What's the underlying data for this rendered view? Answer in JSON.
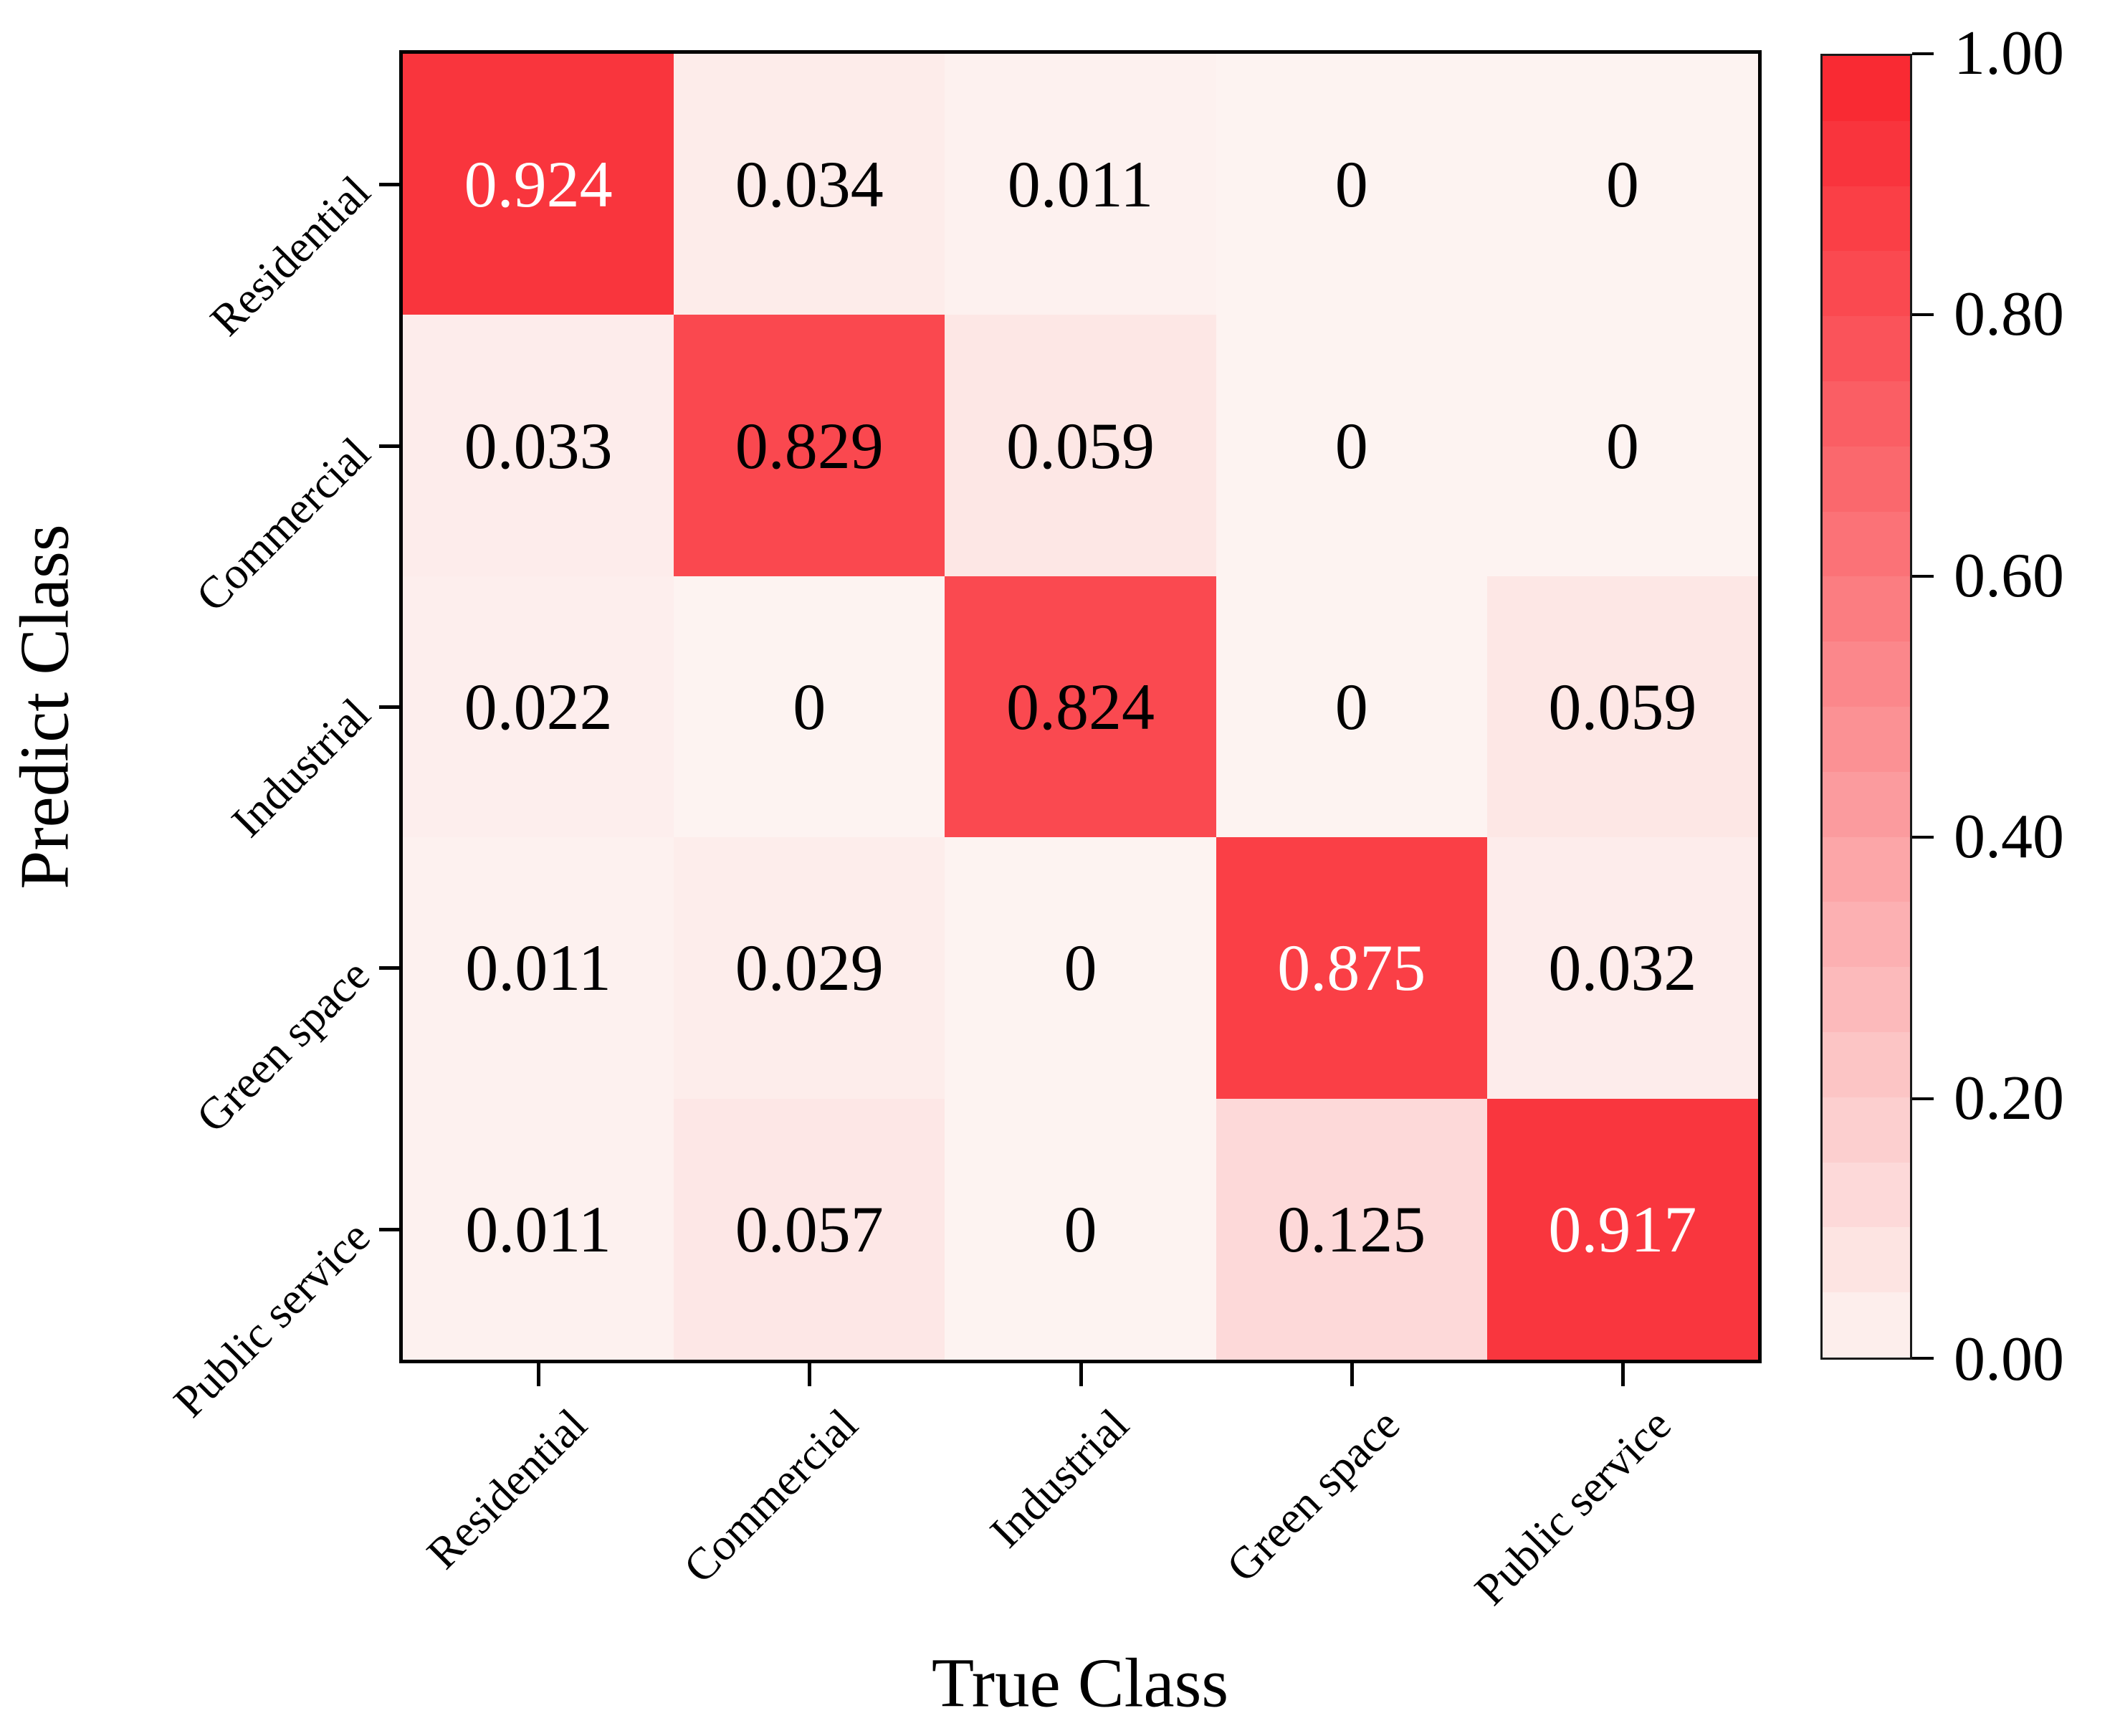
{
  "chart_data": {
    "type": "heatmap",
    "title": "",
    "xlabel": "True Class",
    "ylabel": "Predict Class",
    "x_categories": [
      "Residential",
      "Commercial",
      "Industrial",
      "Green space",
      "Public service"
    ],
    "y_categories": [
      "Residential",
      "Commercial",
      "Industrial",
      "Green space",
      "Public service"
    ],
    "series": [
      {
        "name": "Residential",
        "values": [
          0.924,
          0.034,
          0.011,
          0,
          0
        ]
      },
      {
        "name": "Commercial",
        "values": [
          0.033,
          0.829,
          0.059,
          0,
          0
        ]
      },
      {
        "name": "Industrial",
        "values": [
          0.022,
          0,
          0.824,
          0,
          0.059
        ]
      },
      {
        "name": "Green space",
        "values": [
          0.011,
          0.029,
          0,
          0.875,
          0.032
        ]
      },
      {
        "name": "Public service",
        "values": [
          0.011,
          0.057,
          0,
          0.125,
          0.917
        ]
      }
    ],
    "cell_text": [
      [
        "0.924",
        "0.034",
        "0.011",
        "0",
        "0"
      ],
      [
        "0.033",
        "0.829",
        "0.059",
        "0",
        "0"
      ],
      [
        "0.022",
        "0",
        "0.824",
        "0",
        "0.059"
      ],
      [
        "0.011",
        "0.029",
        "0",
        "0.875",
        "0.032"
      ],
      [
        "0.011",
        "0.057",
        "0",
        "0.125",
        "0.917"
      ]
    ],
    "value_range": [
      0,
      1
    ],
    "colormap": {
      "low": "#fdf3f1",
      "high": "#f9252e",
      "steps": 20,
      "white_text_threshold": 0.85,
      "white_text_color": "#ffffff",
      "black_text_color": "#000000"
    },
    "colorbar": {
      "position": "right",
      "tick_labels": [
        "1.00",
        "0.80",
        "0.60",
        "0.40",
        "0.20",
        "0.00"
      ],
      "tick_values": [
        1.0,
        0.8,
        0.6,
        0.4,
        0.2,
        0.0
      ]
    },
    "grid": false,
    "axis_color": "#000000",
    "background": "#ffffff"
  }
}
